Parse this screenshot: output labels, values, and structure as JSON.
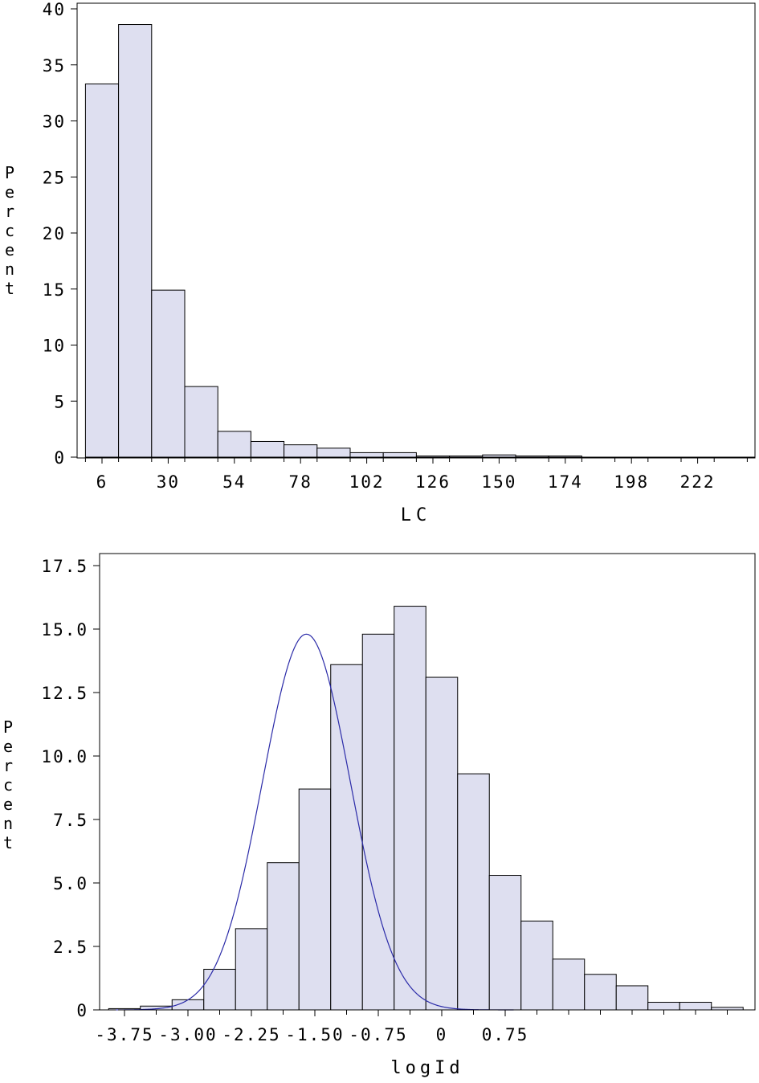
{
  "chart_data": [
    {
      "type": "bar",
      "chart_kind": "histogram",
      "xlabel": "LC",
      "ylabel": "Percent",
      "ylim": [
        0,
        40
      ],
      "y_ticks": [
        "0",
        "5",
        "10",
        "15",
        "20",
        "25",
        "30",
        "35",
        "40"
      ],
      "x_tick_values": [
        6,
        30,
        54,
        78,
        102,
        126,
        150,
        174,
        198,
        222
      ],
      "x_tick_labels": [
        "6",
        "30",
        "54",
        "78",
        "102",
        "126",
        "150",
        "174",
        "198",
        "222"
      ],
      "bin_width": 12,
      "bin_centers": [
        6,
        18,
        30,
        42,
        54,
        66,
        78,
        90,
        102,
        114,
        126,
        138,
        150,
        162,
        174
      ],
      "values": [
        33.3,
        38.6,
        14.9,
        6.3,
        2.3,
        1.4,
        1.1,
        0.8,
        0.4,
        0.4,
        0.1,
        0.1,
        0.2,
        0.1,
        0.1
      ],
      "bar_color": "#dedff0",
      "edge_color": "#000000",
      "grid": false
    },
    {
      "type": "bar",
      "chart_kind": "histogram",
      "xlabel": "logId",
      "ylabel": "Percent",
      "ylim": [
        0,
        17.5
      ],
      "y_ticks": [
        "0",
        "2.5",
        "5.0",
        "7.5",
        "10.0",
        "12.5",
        "15.0",
        "17.5"
      ],
      "x_tick_values": [
        -3.75,
        -3.0,
        -2.25,
        -1.5,
        -0.75,
        0,
        0.75
      ],
      "x_tick_labels": [
        "-3.75",
        "-3.00",
        "-2.25",
        "-1.50",
        "-0.75",
        "0",
        "0.75"
      ],
      "bin_width": 0.375,
      "bin_centers": [
        -3.75,
        -3.375,
        -3.0,
        -2.625,
        -2.25,
        -1.875,
        -1.5,
        -1.125,
        -0.75,
        -0.375,
        0.0,
        0.375,
        0.75,
        1.125,
        1.5,
        1.875,
        2.25,
        2.625,
        3.0,
        3.375
      ],
      "values": [
        0.05,
        0.15,
        0.4,
        1.6,
        3.2,
        5.8,
        8.7,
        13.6,
        14.8,
        15.9,
        13.1,
        9.3,
        5.3,
        3.5,
        2.0,
        1.4,
        0.95,
        0.3,
        0.3,
        0.1
      ],
      "normal_curve": {
        "mean": -1.6,
        "sd": 0.52,
        "peak_percent": 14.8,
        "color": "#2b2ba8"
      },
      "bar_color": "#dedff0",
      "edge_color": "#000000",
      "grid": false
    }
  ]
}
